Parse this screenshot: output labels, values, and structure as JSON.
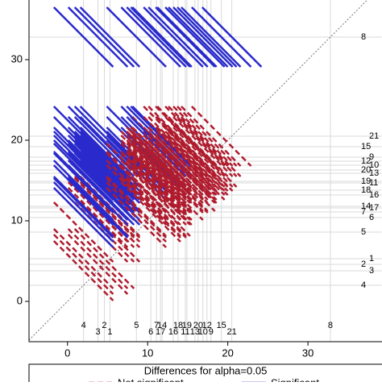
{
  "chart_data": {
    "type": "diffogram",
    "legend_title": "Differences for alpha=0.05",
    "series": [
      {
        "name": "Not significant",
        "color": "#b01c2e"
      },
      {
        "name": "Significant",
        "color": "#2a2acc"
      }
    ],
    "groups": [
      "1",
      "2",
      "3",
      "4",
      "5",
      "6",
      "7",
      "8",
      "9",
      "10",
      "11",
      "12",
      "13",
      "14",
      "15",
      "16",
      "17",
      "18",
      "19",
      "20",
      "21"
    ],
    "means": [
      5.3,
      4.6,
      3.8,
      2.0,
      8.6,
      10.4,
      11.1,
      32.8,
      17.9,
      16.9,
      14.7,
      17.4,
      15.9,
      11.8,
      19.2,
      13.2,
      11.6,
      13.8,
      14.9,
      16.3,
      20.5
    ],
    "ci_half_width": 3.7,
    "xlim": [
      -4.8,
      39.2
    ],
    "ylim": [
      -5,
      37.4
    ],
    "xticks": [
      0,
      10,
      20,
      30
    ],
    "yticks": [
      0,
      10,
      20,
      30
    ]
  }
}
